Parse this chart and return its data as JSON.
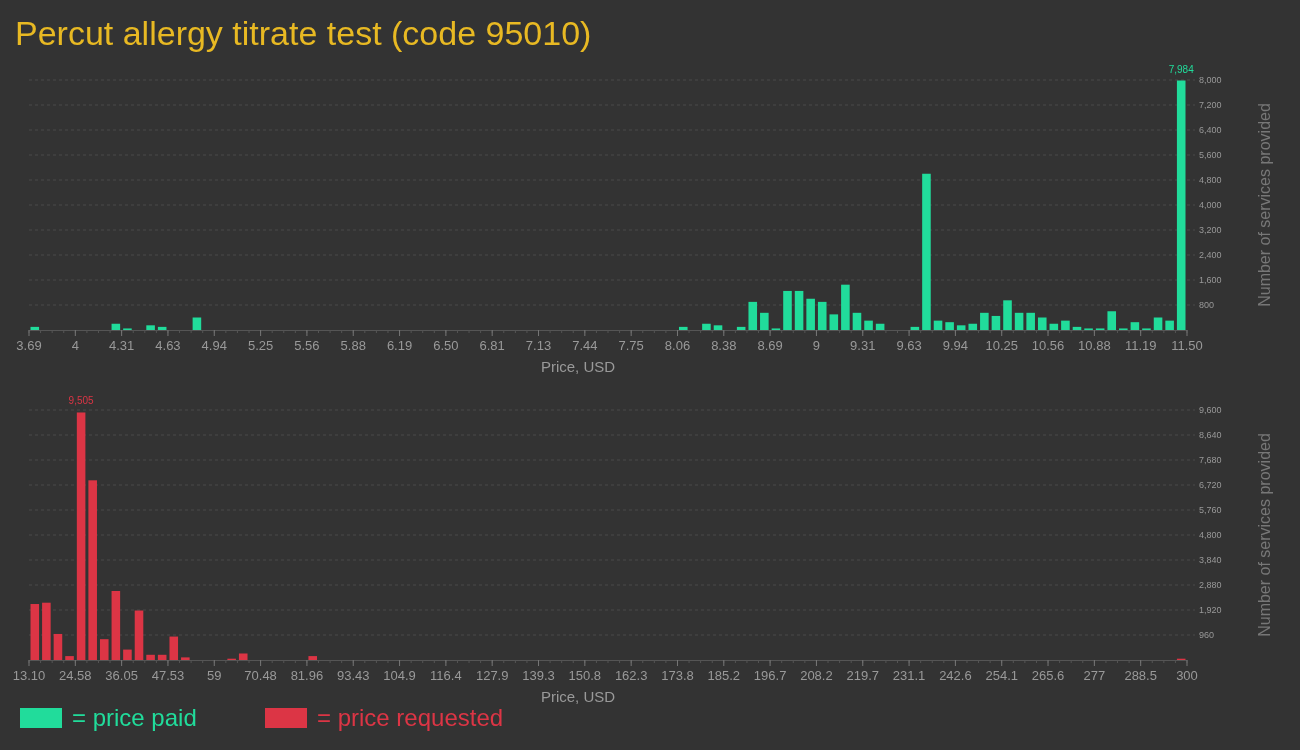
{
  "chart_data": [
    {
      "type": "histogram",
      "title": "Percut allergy titrate test (code 95010)",
      "xlabel": "Price, USD",
      "ylabel": "Number of services provided",
      "bins": [
        3.6875,
        3.765625,
        3.84375,
        3.921875,
        4,
        4.078125,
        4.15625,
        4.234375,
        4.3125,
        4.390625,
        4.46875,
        4.546875,
        4.625,
        4.703125,
        4.78125,
        4.859375,
        4.9375,
        5.015625,
        5.09375,
        5.171875,
        5.25,
        5.328125,
        5.40625,
        5.484375,
        5.5625,
        5.640625,
        5.71875,
        5.796875,
        5.875,
        5.953125,
        6.03125,
        6.109375,
        6.1875,
        6.265625,
        6.34375,
        6.421875,
        6.5,
        6.578125,
        6.65625,
        6.734375,
        6.8125,
        6.890625,
        6.96875,
        7.046875,
        7.125,
        7.203125,
        7.28125,
        7.359375,
        7.4375,
        7.515625,
        7.59375,
        7.671875,
        7.75,
        7.828125,
        7.90625,
        7.984375,
        8.0625,
        8.140625,
        8.21875,
        8.296875,
        8.375,
        8.453125,
        8.53125,
        8.609375,
        8.6875,
        8.765625,
        8.84375,
        8.921875,
        9,
        9.078125,
        9.15625,
        9.234375,
        9.3125,
        9.390625,
        9.46875,
        9.546875,
        9.625,
        9.703125,
        9.78125,
        9.859375,
        9.9375,
        10.015625,
        10.09375,
        10.171875,
        10.25,
        10.328125,
        10.40625,
        10.484375,
        10.5625,
        10.640625,
        10.71875,
        10.796875,
        10.875,
        10.953125,
        11.03125,
        11.109375,
        11.1875,
        11.265625,
        11.34375,
        11.421875,
        11.5
      ],
      "series": [
        {
          "name": "= price paid",
          "color": "#21dc9b",
          "values": [
            100,
            0,
            0,
            0,
            0,
            0,
            0,
            200,
            50,
            0,
            150,
            100,
            0,
            0,
            400,
            0,
            0,
            0,
            0,
            0,
            0,
            0,
            0,
            0,
            0,
            0,
            0,
            0,
            0,
            0,
            0,
            0,
            0,
            0,
            0,
            0,
            0,
            0,
            0,
            0,
            0,
            0,
            0,
            0,
            0,
            0,
            0,
            0,
            0,
            0,
            0,
            0,
            0,
            0,
            0,
            0,
            100,
            0,
            200,
            150,
            0,
            100,
            900,
            550,
            50,
            1250,
            1250,
            1000,
            900,
            500,
            1450,
            550,
            300,
            200,
            0,
            0,
            100,
            5000,
            300,
            250,
            150,
            200,
            550,
            450,
            950,
            550,
            550,
            400,
            200,
            300,
            100,
            50,
            50,
            600,
            50,
            250,
            50,
            400,
            300,
            7984
          ],
          "value_labels": [
            null,
            null,
            null,
            null,
            null,
            null,
            null,
            null,
            null,
            null,
            null,
            null,
            null,
            null,
            null,
            null,
            null,
            null,
            null,
            null,
            null,
            null,
            null,
            null,
            null,
            null,
            null,
            null,
            null,
            null,
            null,
            null,
            null,
            null,
            null,
            null,
            null,
            null,
            null,
            null,
            null,
            null,
            null,
            null,
            null,
            null,
            null,
            null,
            null,
            null,
            null,
            null,
            null,
            null,
            null,
            null,
            null,
            null,
            null,
            null,
            null,
            null,
            null,
            null,
            null,
            null,
            null,
            null,
            null,
            null,
            null,
            null,
            null,
            null,
            null,
            null,
            null,
            null,
            null,
            null,
            null,
            null,
            null,
            null,
            null,
            null,
            null,
            null,
            null,
            null,
            null,
            null,
            null,
            null,
            null,
            null,
            null,
            null,
            null,
            "7,984"
          ]
        }
      ],
      "xlim": [
        3.6875,
        11.5
      ],
      "xticks": [
        {
          "value": 3.6875,
          "label": "3.69"
        },
        4,
        {
          "value": 4.3125,
          "label": "4.31"
        },
        {
          "value": 4.625,
          "label": "4.63"
        },
        {
          "value": 4.9375,
          "label": "4.94"
        },
        5.25,
        {
          "value": 5.5625,
          "label": "5.56"
        },
        {
          "value": 5.875,
          "label": "5.88"
        },
        {
          "value": 6.1875,
          "label": "6.19"
        },
        {
          "value": 6.5,
          "label": "6.50"
        },
        {
          "value": 6.8125,
          "label": "6.81"
        },
        {
          "value": 7.125,
          "label": "7.13"
        },
        {
          "value": 7.4375,
          "label": "7.44"
        },
        7.75,
        {
          "value": 8.0625,
          "label": "8.06"
        },
        {
          "value": 8.375,
          "label": "8.38"
        },
        {
          "value": 8.6875,
          "label": "8.69"
        },
        9,
        {
          "value": 9.3125,
          "label": "9.31"
        },
        {
          "value": 9.625,
          "label": "9.63"
        },
        {
          "value": 9.9375,
          "label": "9.94"
        },
        10.25,
        {
          "value": 10.5625,
          "label": "10.56"
        },
        {
          "value": 10.875,
          "label": "10.88"
        },
        {
          "value": 11.1875,
          "label": "11.19"
        },
        {
          "value": 11.5,
          "label": "11.50"
        }
      ],
      "ylim": [
        0,
        8000
      ],
      "yticks": [
        800,
        {
          "value": 1600,
          "label": "1,600"
        },
        {
          "value": 2400,
          "label": "2,400"
        },
        {
          "value": 3200,
          "label": "3,200"
        },
        {
          "value": 4000,
          "label": "4,000"
        },
        {
          "value": 4800,
          "label": "4,800"
        },
        {
          "value": 5600,
          "label": "5,600"
        },
        {
          "value": 6400,
          "label": "6,400"
        },
        {
          "value": 7200,
          "label": "7,200"
        },
        {
          "value": 8000,
          "label": "8,000"
        }
      ],
      "grid": "y",
      "legend": "bottom"
    },
    {
      "type": "histogram",
      "xlabel": "Price, USD",
      "ylabel": "Number of services provided",
      "bins": [
        13.1,
        15.969,
        18.838,
        21.707,
        24.576,
        27.445,
        30.314,
        33.183,
        36.052,
        38.921,
        41.79,
        44.659,
        47.528,
        50.397,
        53.266,
        56.135,
        59.004,
        61.873,
        64.742,
        67.611,
        70.48,
        73.349,
        76.218,
        79.087,
        81.956,
        84.825,
        87.694,
        90.563,
        93.432,
        96.301,
        99.17,
        102.039,
        104.908,
        107.777,
        110.646,
        113.515,
        116.384,
        119.253,
        122.122,
        124.991,
        127.86,
        130.729,
        133.598,
        136.467,
        139.336,
        142.205,
        145.074,
        147.943,
        150.812,
        153.681,
        156.55,
        159.419,
        162.288,
        165.157,
        168.026,
        170.895,
        173.764,
        176.633,
        179.502,
        182.371,
        185.24,
        188.109,
        190.978,
        193.847,
        196.716,
        199.585,
        202.454,
        205.323,
        208.192,
        211.061,
        213.93,
        216.799,
        219.668,
        222.537,
        225.406,
        228.275,
        231.144,
        234.013,
        236.882,
        239.751,
        242.62,
        245.489,
        248.358,
        251.227,
        254.096,
        256.965,
        259.834,
        262.703,
        265.572,
        268.441,
        271.31,
        274.179,
        277.048,
        279.917,
        282.786,
        285.655,
        288.524,
        291.393,
        294.262,
        297.131,
        300
      ],
      "series": [
        {
          "name": "= price requested",
          "color": "#dc3545",
          "values": [
            2150,
            2200,
            1000,
            150,
            9505,
            6900,
            800,
            2650,
            400,
            1900,
            200,
            200,
            900,
            100,
            0,
            0,
            0,
            50,
            250,
            0,
            0,
            0,
            0,
            0,
            150,
            0,
            0,
            0,
            0,
            0,
            0,
            0,
            0,
            0,
            0,
            0,
            0,
            0,
            0,
            0,
            0,
            0,
            0,
            0,
            0,
            0,
            0,
            0,
            0,
            0,
            0,
            0,
            0,
            0,
            0,
            0,
            0,
            0,
            0,
            0,
            0,
            0,
            0,
            0,
            0,
            0,
            0,
            0,
            0,
            0,
            0,
            0,
            0,
            0,
            0,
            0,
            0,
            0,
            0,
            0,
            0,
            0,
            0,
            0,
            0,
            0,
            0,
            0,
            0,
            0,
            0,
            0,
            0,
            0,
            0,
            0,
            0,
            0,
            0,
            50
          ],
          "value_labels": [
            null,
            null,
            null,
            null,
            "9,505",
            null,
            null,
            null,
            null,
            null,
            null,
            null,
            null,
            null,
            null,
            null,
            null,
            null,
            null,
            null,
            null,
            null,
            null,
            null,
            null,
            null,
            null,
            null,
            null,
            null,
            null,
            null,
            null,
            null,
            null,
            null,
            null,
            null,
            null,
            null,
            null,
            null,
            null,
            null,
            null,
            null,
            null,
            null,
            null,
            null,
            null,
            null,
            null,
            null,
            null,
            null,
            null,
            null,
            null,
            null,
            null,
            null,
            null,
            null,
            null,
            null,
            null,
            null,
            null,
            null,
            null,
            null,
            null,
            null,
            null,
            null,
            null,
            null,
            null,
            null,
            null,
            null,
            null,
            null,
            null,
            null,
            null,
            null,
            null,
            null,
            null,
            null,
            null,
            null,
            null,
            null,
            null,
            null,
            null,
            null
          ]
        }
      ],
      "xlim": [
        13.1,
        300
      ],
      "xticks": [
        {
          "value": 13.1,
          "label": "13.10"
        },
        {
          "value": 24.576,
          "label": "24.58"
        },
        {
          "value": 36.052,
          "label": "36.05"
        },
        {
          "value": 47.528,
          "label": "47.53"
        },
        {
          "value": 59.004,
          "label": "59"
        },
        {
          "value": 70.48,
          "label": "70.48"
        },
        {
          "value": 81.956,
          "label": "81.96"
        },
        {
          "value": 93.432,
          "label": "93.43"
        },
        {
          "value": 104.908,
          "label": "104.9"
        },
        {
          "value": 116.384,
          "label": "116.4"
        },
        {
          "value": 127.86,
          "label": "127.9"
        },
        {
          "value": 139.336,
          "label": "139.3"
        },
        {
          "value": 150.812,
          "label": "150.8"
        },
        {
          "value": 162.288,
          "label": "162.3"
        },
        {
          "value": 173.764,
          "label": "173.8"
        },
        {
          "value": 185.24,
          "label": "185.2"
        },
        {
          "value": 196.716,
          "label": "196.7"
        },
        {
          "value": 208.192,
          "label": "208.2"
        },
        {
          "value": 219.668,
          "label": "219.7"
        },
        {
          "value": 231.144,
          "label": "231.1"
        },
        {
          "value": 242.62,
          "label": "242.6"
        },
        {
          "value": 254.096,
          "label": "254.1"
        },
        {
          "value": 265.572,
          "label": "265.6"
        },
        {
          "value": 277.048,
          "label": "277"
        },
        {
          "value": 288.524,
          "label": "288.5"
        },
        300
      ],
      "ylim": [
        0,
        9600
      ],
      "yticks": [
        {
          "value": 960,
          "label": "960"
        },
        {
          "value": 1920,
          "label": "1,920"
        },
        {
          "value": 2880,
          "label": "2,880"
        },
        {
          "value": 3840,
          "label": "3,840"
        },
        {
          "value": 4800,
          "label": "4,800"
        },
        {
          "value": 5760,
          "label": "5,760"
        },
        {
          "value": 6720,
          "label": "6,720"
        },
        {
          "value": 7680,
          "label": "7,680"
        },
        {
          "value": 8640,
          "label": "8,640"
        },
        {
          "value": 9600,
          "label": "9,600"
        }
      ],
      "grid": "y",
      "legend": "bottom"
    }
  ]
}
